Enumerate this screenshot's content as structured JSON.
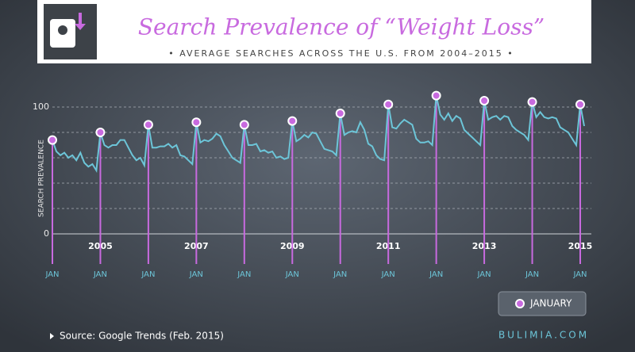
{
  "chart_data": {
    "type": "line",
    "title": "Search Prevalence of “Weight Loss”",
    "subtitle": "• AVERAGE SEARCHES ACROSS THE U.S. FROM 2004–2015 •",
    "y_label": "SEARCH PREVALENCE",
    "month_label": "JAN",
    "legend_label": "JANUARY",
    "source": "Source: Google Trends (Feb. 2015)",
    "brand": "BULIMIA.COM",
    "color": "#6cc5d8",
    "marker_color": "#c86adf",
    "start_year": 2004,
    "xlim": [
      2004,
      2015
    ],
    "xticks": [
      2005,
      2007,
      2009,
      2011,
      2013,
      2015
    ],
    "ylim": [
      0,
      100
    ],
    "yticks": [
      0,
      100
    ],
    "ygrid": [
      20,
      40,
      60,
      80,
      100
    ],
    "values": [
      74,
      65,
      62,
      64,
      60,
      62,
      58,
      64,
      56,
      53,
      55,
      50,
      80,
      70,
      68,
      70,
      70,
      74,
      74,
      68,
      62,
      58,
      60,
      54,
      86,
      68,
      68,
      69,
      69,
      71,
      68,
      70,
      62,
      61,
      58,
      55,
      88,
      72,
      74,
      73,
      75,
      79,
      77,
      70,
      65,
      60,
      58,
      56,
      86,
      70,
      70,
      71,
      65,
      66,
      64,
      65,
      60,
      61,
      59,
      60,
      89,
      73,
      75,
      78,
      76,
      80,
      79,
      73,
      67,
      66,
      65,
      62,
      95,
      78,
      80,
      81,
      80,
      88,
      82,
      71,
      69,
      62,
      59,
      58,
      102,
      84,
      83,
      87,
      90,
      88,
      86,
      75,
      72,
      72,
      73,
      70,
      109,
      94,
      90,
      95,
      89,
      93,
      91,
      82,
      79,
      76,
      73,
      70,
      105,
      90,
      92,
      93,
      90,
      93,
      92,
      85,
      82,
      80,
      78,
      74,
      104,
      92,
      96,
      92,
      91,
      92,
      91,
      84,
      82,
      80,
      75,
      70,
      102,
      85
    ]
  }
}
